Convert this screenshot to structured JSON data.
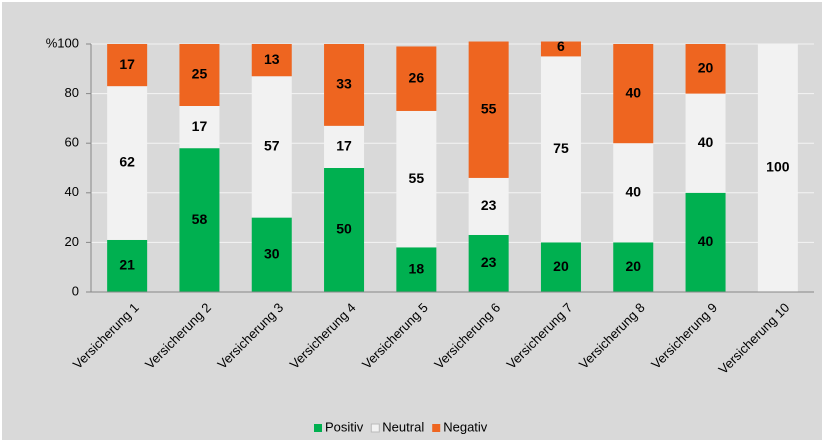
{
  "chart_data": {
    "type": "stacked-bar",
    "categories": [
      "Versicherung 1",
      "Versicherung 2",
      "Versicherung 3",
      "Versicherung 4",
      "Versicherung 5",
      "Versicherung 6",
      "Versicherung 7",
      "Versicherung 8",
      "Versicherung 9",
      "Versicherung 10"
    ],
    "series": [
      {
        "name": "Positiv",
        "color": "#00b050",
        "values": [
          21,
          58,
          30,
          50,
          18,
          23,
          20,
          20,
          40,
          null
        ]
      },
      {
        "name": "Neutral",
        "color": "#f2f2f2",
        "values": [
          62,
          17,
          57,
          17,
          55,
          23,
          75,
          40,
          40,
          100
        ]
      },
      {
        "name": "Negativ",
        "color": "#ee6520",
        "values": [
          17,
          25,
          13,
          33,
          26,
          55,
          6,
          40,
          20,
          null
        ]
      }
    ],
    "ylim": [
      0,
      100
    ],
    "yticks": [
      0,
      20,
      40,
      60,
      80,
      {
        "value": 100,
        "label": "%100"
      }
    ],
    "grid": true,
    "legend": "bottom"
  }
}
